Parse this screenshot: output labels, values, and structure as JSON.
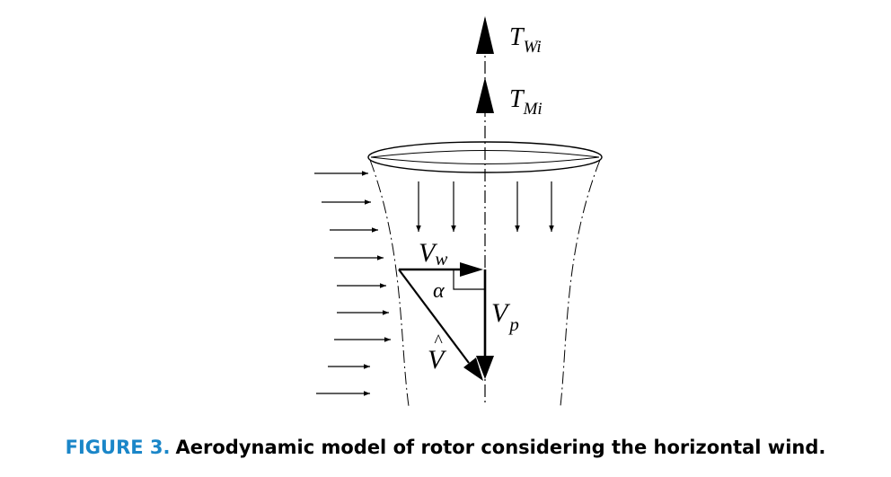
{
  "labels": {
    "thrust_w_main": "T",
    "thrust_w_sub": "Wi",
    "thrust_m_main": "T",
    "thrust_m_sub": "Mi",
    "vw_main": "V",
    "vw_sub": "w",
    "alpha": "α",
    "vp_main": "V",
    "vp_sub": "p",
    "vhat_main": "V",
    "vhat_accent": "^"
  },
  "caption": {
    "figure_label": "FIGURE 3.",
    "text": "Aerodynamic model of rotor considering the horizontal wind."
  }
}
